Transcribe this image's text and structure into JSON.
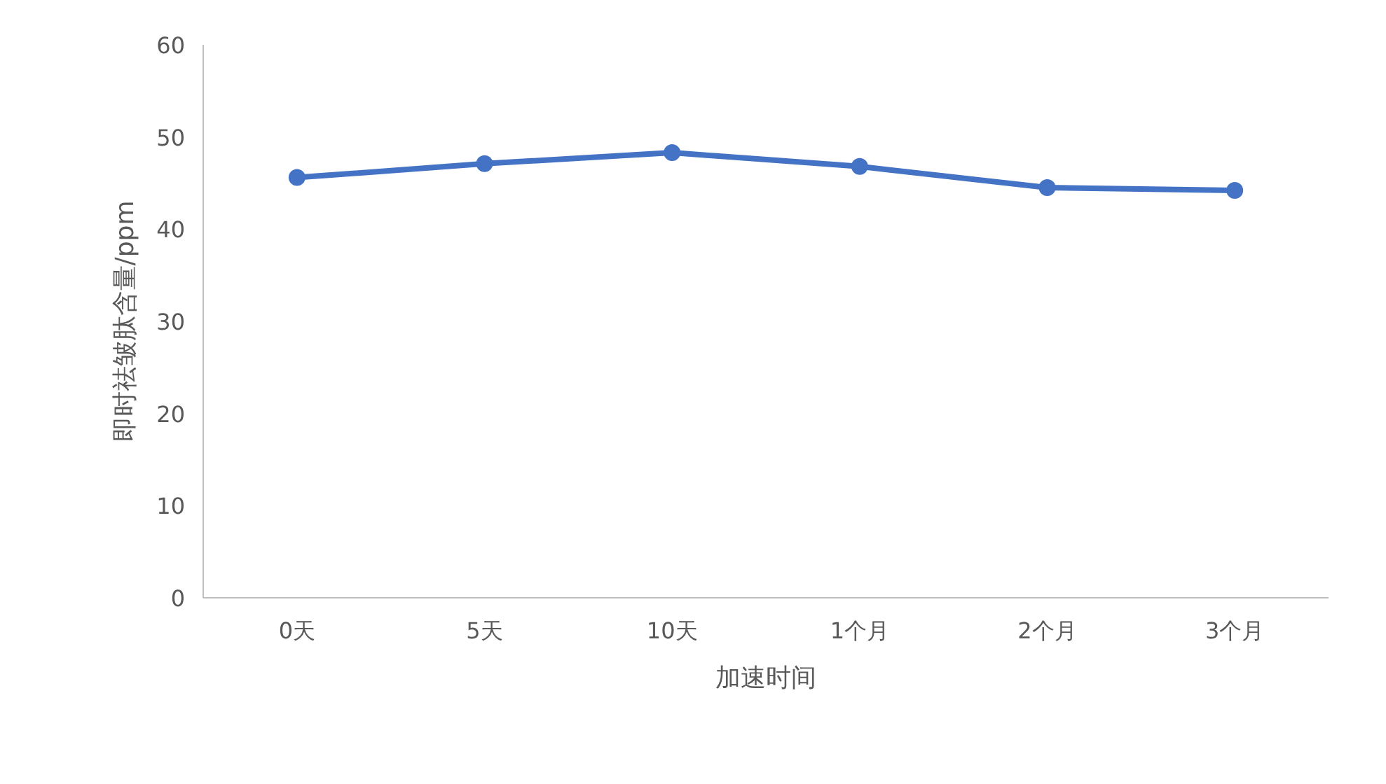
{
  "chart_data": {
    "type": "line",
    "xlabel": "加速时间",
    "ylabel": "即时祛皱肽含量/ppm",
    "categories": [
      "0天",
      "5天",
      "10天",
      "1个月",
      "2个月",
      "3个月"
    ],
    "series": [
      {
        "color": "#4472c4",
        "values": [
          45.6,
          47.1,
          48.3,
          46.8,
          44.5,
          44.2
        ]
      }
    ],
    "ylim": [
      0,
      60
    ],
    "yticks": [
      0,
      10,
      20,
      30,
      40,
      50,
      60
    ],
    "marker": "circle",
    "grid": false
  }
}
